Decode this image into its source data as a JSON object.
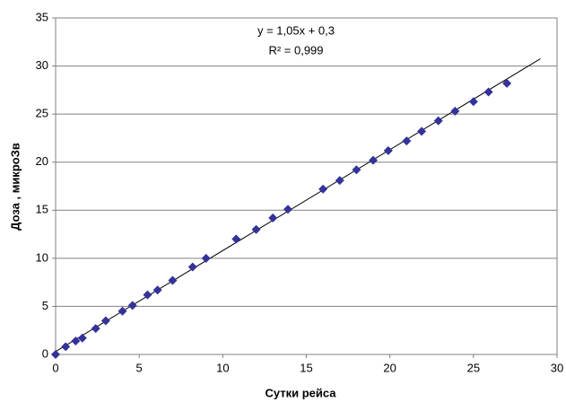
{
  "chart_data": {
    "type": "scatter",
    "x_label": "Сутки рейса",
    "y_label": "Доза , микроЗв",
    "annotations": [
      "y = 1,05x + 0,3",
      "R² = 0,999"
    ],
    "x": [
      0,
      0.6,
      1.2,
      1.6,
      2.4,
      3.0,
      4.0,
      4.6,
      5.5,
      6.1,
      7.0,
      8.2,
      9.0,
      10.8,
      12.0,
      13.0,
      13.9,
      16.0,
      17.0,
      18.0,
      19.0,
      19.9,
      21.0,
      21.9,
      22.9,
      23.9,
      25.0,
      25.9,
      27.0
    ],
    "values": [
      0,
      0.8,
      1.4,
      1.7,
      2.7,
      3.5,
      4.5,
      5.1,
      6.2,
      6.7,
      7.7,
      9.1,
      10.0,
      12.0,
      13.0,
      14.2,
      15.1,
      17.2,
      18.1,
      19.2,
      20.2,
      21.2,
      22.2,
      23.2,
      24.3,
      25.3,
      26.3,
      27.3,
      28.2
    ],
    "color": "#333399",
    "trendline": {
      "slope": 1.05,
      "intercept": 0.3,
      "x_range": [
        0,
        29
      ],
      "color": "#000000"
    },
    "xlim": [
      0,
      30
    ],
    "xticks": [
      0,
      5,
      10,
      15,
      20,
      25,
      30
    ],
    "ylim": [
      0,
      35
    ],
    "yticks": [
      0,
      5,
      10,
      15,
      20,
      25,
      30,
      35
    ],
    "grid": true
  }
}
